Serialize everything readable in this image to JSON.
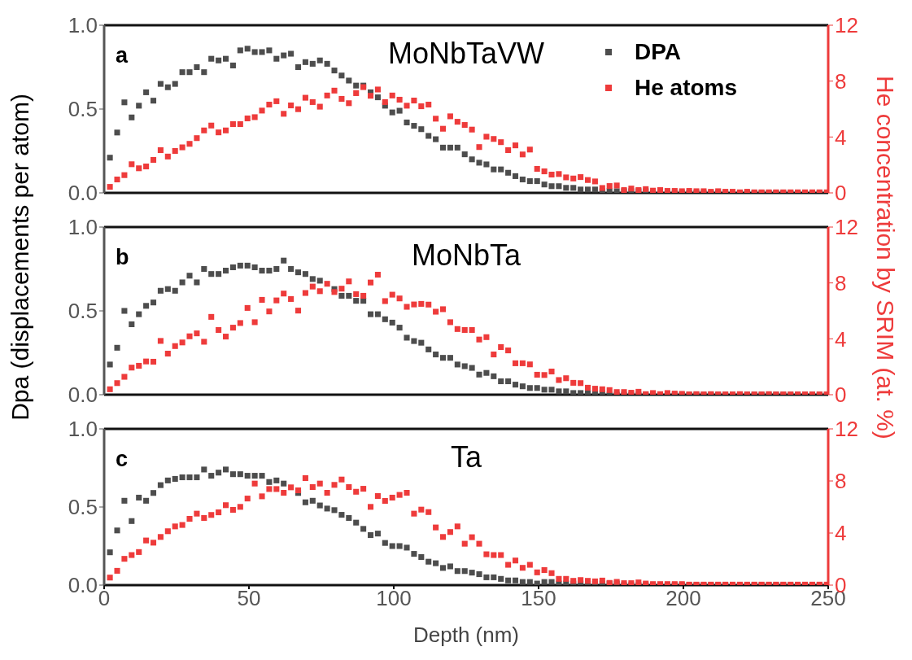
{
  "chart_data": [
    {
      "type": "scatter",
      "title": "MoNbTaVW",
      "annotations": [
        "a"
      ],
      "marker": "square",
      "legend": "top right",
      "tick_labels": "y",
      "grid": false,
      "x": [
        2,
        4.5,
        7,
        9.5,
        12,
        14.5,
        17,
        19.5,
        22,
        24.5,
        27,
        29.5,
        32,
        34.5,
        37,
        39.5,
        42,
        44.5,
        47,
        49.5,
        52,
        54.5,
        57,
        59.5,
        62,
        64.5,
        67,
        69.5,
        72,
        74.5,
        77,
        79.5,
        82,
        84.5,
        87,
        89.5,
        92,
        94.5,
        97,
        99.5,
        102,
        104.5,
        107,
        109.5,
        112,
        114.5,
        117,
        119.5,
        122,
        124.5,
        127,
        129.5,
        132,
        134.5,
        137,
        139.5,
        142,
        144.5,
        147,
        149.5,
        152,
        154.5,
        157,
        159.5,
        162,
        164.5,
        167,
        169.5,
        172,
        174.5,
        177,
        179.5,
        182,
        184.5,
        187,
        189.5,
        192,
        194.5,
        197,
        199.5,
        202,
        204.5,
        207,
        209.5,
        212,
        214.5,
        217,
        219.5,
        222,
        224.5,
        227,
        229.5,
        232,
        234.5,
        237,
        239.5,
        242,
        244.5,
        247,
        249.5
      ],
      "xlim": [
        0,
        250
      ],
      "xticks": [
        0,
        50,
        100,
        150,
        200,
        250
      ],
      "ylim": [
        0,
        1
      ],
      "yticks": [
        {
          "value": 0,
          "label": "0.0"
        },
        {
          "value": 0.5,
          "label": "0.5"
        },
        {
          "value": 1,
          "label": "1.0"
        }
      ],
      "y2lim": [
        0,
        12
      ],
      "y2ticks": [
        0,
        4,
        8,
        12
      ],
      "series": [
        {
          "name": "DPA",
          "color": "#4d4d4d",
          "values": [
            0.21,
            0.36,
            0.54,
            0.45,
            0.52,
            0.6,
            0.55,
            0.65,
            0.63,
            0.65,
            0.72,
            0.72,
            0.75,
            0.72,
            0.8,
            0.79,
            0.8,
            0.76,
            0.85,
            0.86,
            0.84,
            0.84,
            0.85,
            0.8,
            0.82,
            0.83,
            0.75,
            0.78,
            0.77,
            0.79,
            0.77,
            0.73,
            0.7,
            0.67,
            0.64,
            0.64,
            0.6,
            0.57,
            0.52,
            0.48,
            0.49,
            0.42,
            0.4,
            0.38,
            0.34,
            0.32,
            0.27,
            0.27,
            0.27,
            0.23,
            0.2,
            0.18,
            0.17,
            0.14,
            0.14,
            0.12,
            0.1,
            0.08,
            0.07,
            0.07,
            0.05,
            0.04,
            0.04,
            0.03,
            0.03,
            0.02,
            0.02,
            0.02,
            0.01,
            0.01,
            0.01,
            0.01,
            0.01,
            0.01,
            0.01,
            0,
            null,
            0,
            0,
            0,
            0,
            0,
            0,
            0,
            0,
            0,
            null,
            0,
            0,
            0,
            0,
            0,
            0,
            0,
            0,
            0,
            null,
            0,
            0,
            null
          ]
        },
        {
          "name": "He atoms",
          "color": "#ee3b3b",
          "axis": "y2",
          "values": [
            0.43,
            0.96,
            1.27,
            2.05,
            1.76,
            1.89,
            2.36,
            3.06,
            2.6,
            3.0,
            3.26,
            3.51,
            3.92,
            4.47,
            4.82,
            4.33,
            4.47,
            4.92,
            4.92,
            5.33,
            5.42,
            5.89,
            6.32,
            6.56,
            5.66,
            6.26,
            5.99,
            6.81,
            6.5,
            6.17,
            6.97,
            7.32,
            6.73,
            6.42,
            7.14,
            7.57,
            6.95,
            7.4,
            6.5,
            6.97,
            6.67,
            6.24,
            6.61,
            6.2,
            6.32,
            5.31,
            4.59,
            5.48,
            5.09,
            4.86,
            4.53,
            3.28,
            4.02,
            3.86,
            3.63,
            3.06,
            3.4,
            2.75,
            3.1,
            1.72,
            1.54,
            1.31,
            1.35,
            1.11,
            1.03,
            1.13,
            0.92,
            0.82,
            0.35,
            0.49,
            0.53,
            0.2,
            0.31,
            0.2,
            0.27,
            0.16,
            0.2,
            0.14,
            0.14,
            0.12,
            0.14,
            0.12,
            0.12,
            0.08,
            0.12,
            0.08,
            0.08,
            0.04,
            0.08,
            0.04,
            0.04,
            0.04,
            0.04,
            0.04,
            0.04,
            0.04,
            0.04,
            0.04,
            0.04,
            0.04
          ]
        }
      ]
    },
    {
      "type": "scatter",
      "title": "MoNbTa",
      "annotations": [
        "b"
      ],
      "marker": "square",
      "tick_labels": "y",
      "grid": false,
      "ylabel": "Dpa (displacements per atom)",
      "y2label": "He concentration by SRIM (at. %)",
      "x": [
        2,
        4.5,
        7,
        9.5,
        12,
        14.5,
        17,
        19.5,
        22,
        24.5,
        27,
        29.5,
        32,
        34.5,
        37,
        39.5,
        42,
        44.5,
        47,
        49.5,
        52,
        54.5,
        57,
        59.5,
        62,
        64.5,
        67,
        69.5,
        72,
        74.5,
        77,
        79.5,
        82,
        84.5,
        87,
        89.5,
        92,
        94.5,
        97,
        99.5,
        102,
        104.5,
        107,
        109.5,
        112,
        114.5,
        117,
        119.5,
        122,
        124.5,
        127,
        129.5,
        132,
        134.5,
        137,
        139.5,
        142,
        144.5,
        147,
        149.5,
        152,
        154.5,
        157,
        159.5,
        162,
        164.5,
        167,
        169.5,
        172,
        174.5,
        177,
        179.5,
        182,
        184.5,
        187,
        189.5,
        192,
        194.5,
        197,
        199.5,
        202,
        204.5,
        207,
        209.5,
        212,
        214.5,
        217,
        219.5,
        222,
        224.5,
        227,
        229.5,
        232,
        234.5,
        237,
        239.5,
        242,
        244.5,
        247,
        249.5
      ],
      "xlim": [
        0,
        250
      ],
      "xticks": [
        0,
        50,
        100,
        150,
        200,
        250
      ],
      "ylim": [
        0,
        1
      ],
      "yticks": [
        {
          "value": 0,
          "label": "0.0"
        },
        {
          "value": 0.5,
          "label": "0.5"
        },
        {
          "value": 1,
          "label": "1.0"
        }
      ],
      "y2lim": [
        0,
        12
      ],
      "y2ticks": [
        0,
        4,
        8,
        12
      ],
      "series": [
        {
          "color": "#4d4d4d",
          "values": [
            0.18,
            0.28,
            0.5,
            0.42,
            0.48,
            0.53,
            0.55,
            0.62,
            0.63,
            0.62,
            0.67,
            0.71,
            0.67,
            0.75,
            0.72,
            0.72,
            0.74,
            0.76,
            0.77,
            0.77,
            0.76,
            0.74,
            0.74,
            0.75,
            0.8,
            0.75,
            0.73,
            0.72,
            0.69,
            0.68,
            null,
            0.63,
            0.59,
            0.59,
            0.56,
            0.56,
            0.48,
            0.48,
            0.45,
            0.43,
            0.4,
            0.34,
            0.32,
            0.31,
            0.27,
            0.24,
            0.22,
            0.22,
            0.18,
            0.17,
            0.16,
            0.12,
            0.13,
            0.11,
            0.08,
            0.08,
            0.06,
            0.05,
            0.04,
            0.04,
            0.03,
            0.03,
            0.02,
            0.02,
            0.01,
            0.01,
            0.01,
            0.01,
            0.01,
            0,
            0,
            0,
            0,
            0,
            0,
            0,
            null,
            0,
            0,
            0,
            0,
            0,
            0,
            0,
            0,
            0,
            0,
            0,
            0,
            0,
            0,
            0,
            0,
            0,
            0,
            0,
            0,
            0,
            0,
            0
          ]
        },
        {
          "color": "#ee3b3b",
          "axis": "y2",
          "values": [
            0.39,
            0.83,
            1.28,
            1.94,
            2.07,
            2.38,
            2.36,
            3.85,
            2.94,
            3.48,
            3.74,
            4.18,
            4.39,
            3.79,
            5.57,
            4.63,
            4.16,
            4.8,
            5.13,
            6.21,
            5.19,
            6.79,
            5.96,
            6.75,
            7.24,
            6.85,
            6.02,
            7.28,
            7.74,
            7.41,
            7.94,
            7.35,
            7.59,
            8.11,
            7.2,
            7.08,
            8.03,
            8.59,
            6.7,
            7.16,
            6.89,
            6.29,
            6.46,
            6.5,
            6.45,
            5.94,
            6.12,
            5.19,
            4.7,
            4.63,
            4.63,
            3.95,
            4.12,
            2.88,
            3.41,
            3.17,
            2.25,
            2.25,
            2.17,
            1.43,
            1.41,
            1.66,
            1.05,
            1.18,
            0.85,
            0.83,
            0.5,
            0.43,
            0.39,
            0.33,
            0.19,
            0.19,
            0.14,
            0.21,
            0.04,
            0.12,
            0.04,
            0.12,
            0.08,
            0.06,
            0.02,
            0.04,
            0.02,
            0.04,
            0.02,
            0.02,
            0.02,
            0.04,
            0.02,
            0.02,
            0.02,
            0.04,
            0.02,
            0.02,
            0.02,
            0.02,
            0.02,
            0.02,
            0.02,
            0.02
          ]
        }
      ]
    },
    {
      "type": "scatter",
      "title": "Ta",
      "annotations": [
        "c"
      ],
      "marker": "square",
      "grid": false,
      "xlabel": "Depth (nm)",
      "x": [
        2,
        4.5,
        7,
        9.5,
        12,
        14.5,
        17,
        19.5,
        22,
        24.5,
        27,
        29.5,
        32,
        34.5,
        37,
        39.5,
        42,
        44.5,
        47,
        49.5,
        52,
        54.5,
        57,
        59.5,
        62,
        64.5,
        67,
        69.5,
        72,
        74.5,
        77,
        79.5,
        82,
        84.5,
        87,
        89.5,
        92,
        94.5,
        97,
        99.5,
        102,
        104.5,
        107,
        109.5,
        112,
        114.5,
        117,
        119.5,
        122,
        124.5,
        127,
        129.5,
        132,
        134.5,
        137,
        139.5,
        142,
        144.5,
        147,
        149.5,
        152,
        154.5,
        157,
        159.5,
        162,
        164.5,
        167,
        169.5,
        172,
        174.5,
        177,
        179.5,
        182,
        184.5,
        187,
        189.5,
        192,
        194.5,
        197,
        199.5,
        202,
        204.5,
        207,
        209.5,
        212,
        214.5,
        217,
        219.5,
        222,
        224.5,
        227,
        229.5,
        232,
        234.5,
        237,
        239.5,
        242,
        244.5,
        247,
        249.5
      ],
      "xlim": [
        0,
        250
      ],
      "xticks": [
        0,
        50,
        100,
        150,
        200,
        250
      ],
      "ylim": [
        0,
        1
      ],
      "yticks": [
        {
          "value": 0,
          "label": "0.0"
        },
        {
          "value": 0.5,
          "label": "0.5"
        },
        {
          "value": 1,
          "label": "1.0"
        }
      ],
      "y2lim": [
        0,
        12
      ],
      "y2ticks": [
        0,
        4,
        8,
        12
      ],
      "series": [
        {
          "color": "#4d4d4d",
          "values": [
            0.21,
            0.35,
            0.54,
            0.41,
            0.56,
            0.54,
            0.59,
            0.64,
            0.67,
            0.68,
            0.69,
            0.69,
            0.69,
            0.74,
            0.7,
            0.72,
            0.74,
            0.71,
            0.71,
            0.7,
            0.7,
            0.7,
            0.66,
            0.67,
            0.65,
            null,
            0.59,
            0.53,
            0.54,
            0.51,
            0.49,
            0.48,
            0.45,
            0.43,
            0.4,
            0.36,
            0.32,
            0.33,
            0.27,
            0.25,
            0.25,
            0.24,
            0.2,
            0.18,
            0.15,
            0.14,
            0.11,
            0.12,
            0.09,
            0.09,
            0.08,
            0.07,
            0.05,
            0.05,
            0.04,
            0.03,
            0.03,
            0.02,
            0.02,
            0.01,
            0.02,
            0.02,
            0.01,
            0.01,
            0.01,
            0.01,
            0.01,
            0.01,
            0.01,
            0.01,
            0.01,
            0,
            0,
            0,
            0,
            0,
            null,
            0,
            0,
            0,
            0,
            0,
            0,
            0,
            0,
            0,
            null,
            0,
            0,
            0,
            0,
            0,
            0,
            0,
            0,
            0,
            null,
            0,
            0,
            null
          ]
        },
        {
          "color": "#ee3b3b",
          "axis": "y2",
          "values": [
            0.58,
            1.1,
            2.02,
            2.31,
            2.54,
            3.43,
            3.26,
            3.7,
            4.14,
            4.51,
            4.62,
            5.09,
            5.49,
            5.16,
            5.39,
            5.59,
            6.14,
            5.78,
            6.01,
            6.65,
            7.8,
            6.82,
            7.38,
            7.38,
            7.09,
            7.51,
            7.28,
            8.22,
            7.53,
            7.8,
            7.09,
            7.7,
            8.11,
            7.53,
            7.17,
            7.4,
            6.01,
            6.84,
            6.47,
            6.72,
            6.93,
            7.09,
            5.49,
            5.8,
            5.61,
            4.43,
            3.7,
            4.08,
            4.51,
            3.18,
            3.68,
            3.18,
            2.37,
            2.31,
            2.31,
            1.56,
            1.89,
            1.33,
            1.56,
            0.98,
            1.16,
            0.92,
            0.48,
            0.48,
            0.33,
            0.39,
            0.33,
            0.29,
            0.35,
            0.17,
            0.25,
            0.15,
            0.15,
            0.21,
            0.12,
            0.08,
            0.08,
            0.08,
            0.08,
            0.08,
            0.04,
            0.04,
            0.04,
            0.04,
            0.04,
            0.04,
            0.04,
            0.04,
            0.04,
            0.04,
            0.04,
            0.04,
            0.04,
            0.04,
            0.04,
            0.04,
            0.04,
            0.04,
            0.04,
            0.04
          ]
        }
      ]
    }
  ]
}
